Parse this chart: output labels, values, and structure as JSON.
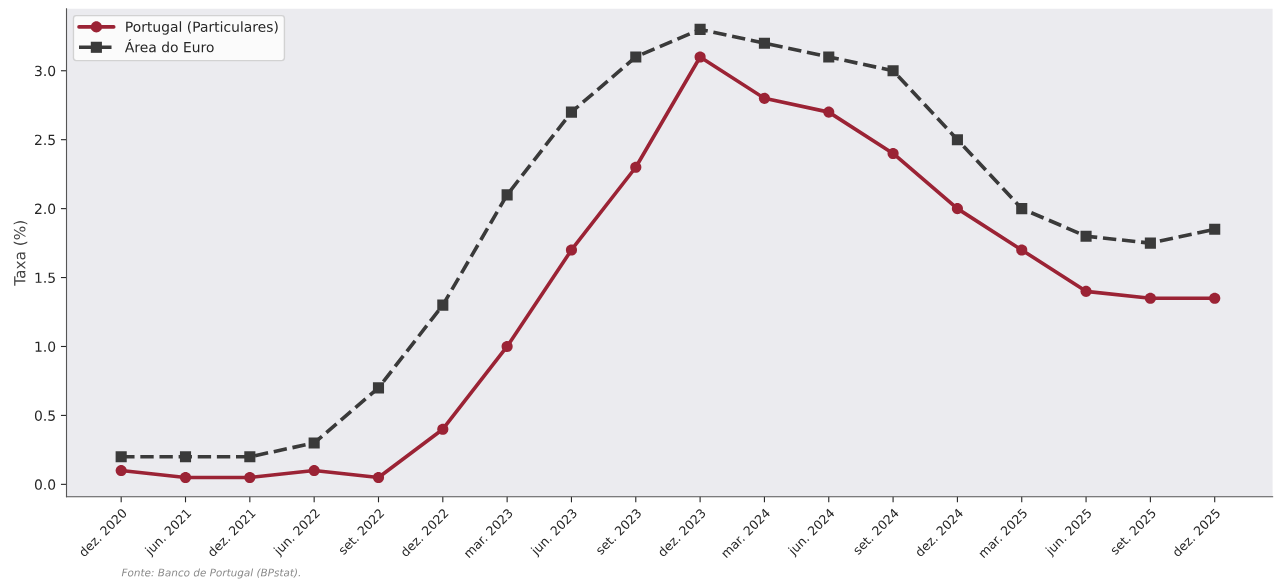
{
  "chart_data": {
    "type": "line",
    "ylabel": "Taxa (%)",
    "categories": [
      "dez. 2020",
      "jun. 2021",
      "dez. 2021",
      "jun. 2022",
      "set. 2022",
      "dez. 2022",
      "mar. 2023",
      "jun. 2023",
      "set. 2023",
      "dez. 2023",
      "mar. 2024",
      "jun. 2024",
      "set. 2024",
      "dez. 2024",
      "mar. 2025",
      "jun. 2025",
      "set. 2025",
      "dez. 2025"
    ],
    "series": [
      {
        "name": "Portugal (Particulares)",
        "color": "#9b2335",
        "marker": "circle",
        "line_style": "solid",
        "values": [
          0.1,
          0.05,
          0.05,
          0.1,
          0.05,
          0.4,
          1.0,
          1.7,
          2.3,
          3.1,
          2.8,
          2.7,
          2.4,
          2.0,
          1.7,
          1.4,
          1.35,
          1.35
        ]
      },
      {
        "name": "Área do Euro",
        "color": "#3a3a3a",
        "marker": "square",
        "line_style": "dashed",
        "values": [
          0.2,
          0.2,
          0.2,
          0.3,
          0.7,
          1.3,
          2.1,
          2.7,
          3.1,
          3.3,
          3.2,
          3.1,
          3.0,
          2.5,
          2.0,
          1.8,
          1.75,
          1.85
        ]
      }
    ],
    "ylim": [
      -0.09,
      3.45
    ],
    "yticks": [
      {
        "value": 0,
        "label": "0.0"
      },
      0.5,
      {
        "value": 1,
        "label": "1.0"
      },
      1.5,
      {
        "value": 2,
        "label": "2.0"
      },
      2.5,
      {
        "value": 3,
        "label": "3.0"
      }
    ],
    "grid": false,
    "legend": "top left",
    "annotations": [
      "Fonte: Banco de Portugal (BPstat)."
    ]
  }
}
